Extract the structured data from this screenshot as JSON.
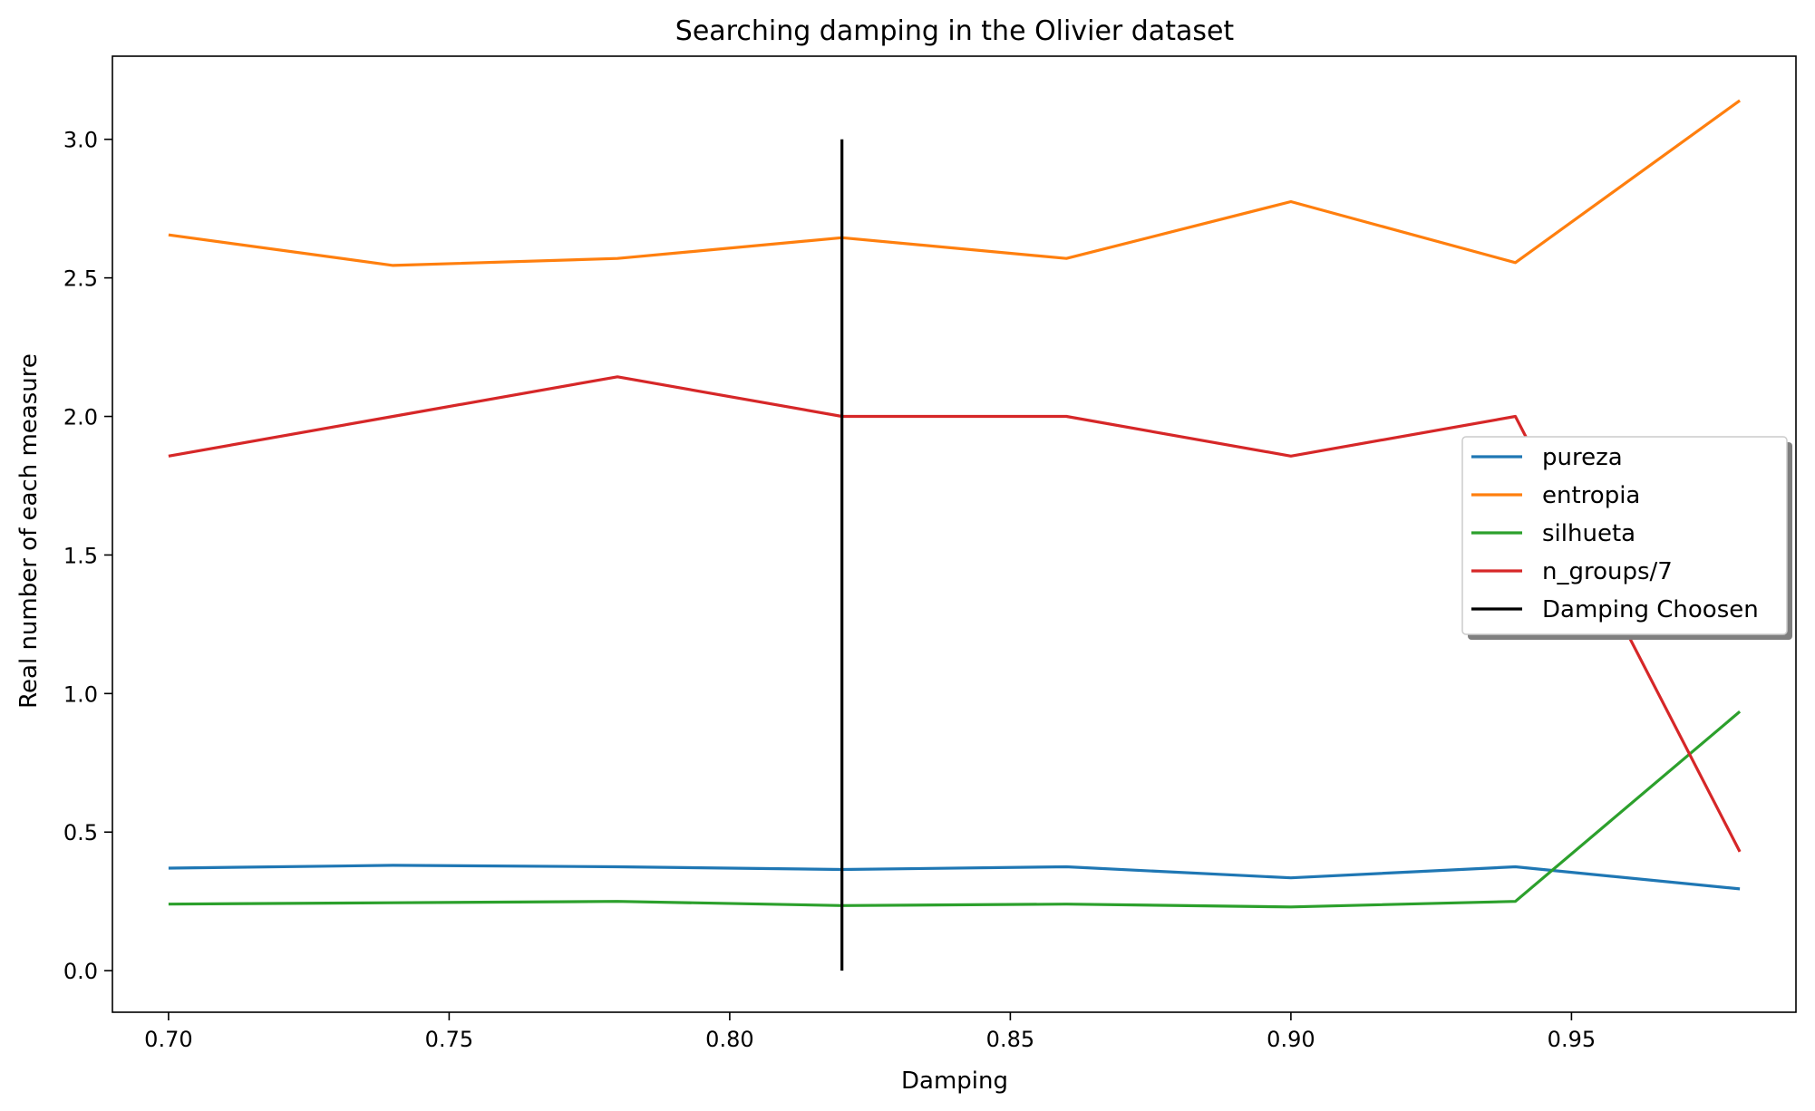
{
  "chart_data": {
    "type": "line",
    "title": "Searching damping in the Olivier dataset",
    "xlabel": "Damping",
    "ylabel": "Real number of each measure",
    "x": [
      0.7,
      0.74,
      0.78,
      0.82,
      0.86,
      0.9,
      0.94,
      0.98
    ],
    "xlim": [
      0.69,
      0.99
    ],
    "ylim": [
      -0.15,
      3.3
    ],
    "xticks": [
      {
        "value": 0.7,
        "label": "0.70"
      },
      {
        "value": 0.75,
        "label": "0.75"
      },
      {
        "value": 0.8,
        "label": "0.80"
      },
      {
        "value": 0.85,
        "label": "0.85"
      },
      {
        "value": 0.9,
        "label": "0.90"
      },
      {
        "value": 0.95,
        "label": "0.95"
      }
    ],
    "yticks": [
      {
        "value": 0.0,
        "label": "0.0"
      },
      {
        "value": 0.5,
        "label": "0.5"
      },
      {
        "value": 1.0,
        "label": "1.0"
      },
      {
        "value": 1.5,
        "label": "1.5"
      },
      {
        "value": 2.0,
        "label": "2.0"
      },
      {
        "value": 2.5,
        "label": "2.5"
      },
      {
        "value": 3.0,
        "label": "3.0"
      }
    ],
    "series": [
      {
        "name": "pureza",
        "color": "#1f77b4",
        "values": [
          0.37,
          0.38,
          0.375,
          0.365,
          0.375,
          0.335,
          0.375,
          0.295
        ]
      },
      {
        "name": "entropia",
        "color": "#ff7f0e",
        "values": [
          2.655,
          2.545,
          2.57,
          2.645,
          2.57,
          2.775,
          2.555,
          3.14
        ]
      },
      {
        "name": "silhueta",
        "color": "#2ca02c",
        "values": [
          0.24,
          0.245,
          0.25,
          0.235,
          0.24,
          0.23,
          0.25,
          0.935
        ]
      },
      {
        "name": "n_groups/7",
        "color": "#d62728",
        "values": [
          1.857,
          2.0,
          2.143,
          2.0,
          2.0,
          1.857,
          2.0,
          0.429
        ]
      }
    ],
    "vline": {
      "name": "Damping Choosen",
      "color": "#000000",
      "x": 0.82,
      "ymin": 0.0,
      "ymax": 3.0
    },
    "grid": false,
    "legend_position": "center-right"
  }
}
